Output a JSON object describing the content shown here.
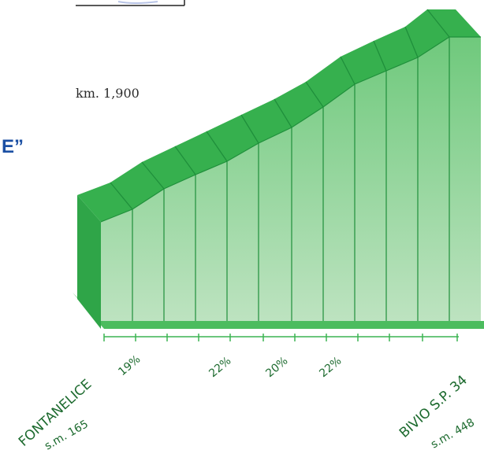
{
  "chart_data": {
    "type": "area",
    "subtype": "climb-profile",
    "title_fragment": "E”",
    "distance_label": "km. 1,900",
    "start": {
      "name": "FONTANELICE",
      "altitude_label": "s.m. 165"
    },
    "end": {
      "name": "BIVIO S.P. 34",
      "altitude_label": "s.m. 448"
    },
    "gradient_labels": [
      "19%",
      "22%",
      "20%",
      "22%"
    ],
    "segment_count": 11,
    "grid": true,
    "colors": {
      "face_top": "#6fc97c",
      "face_bottom": "#bde3c0",
      "ridge": "#36b04e",
      "divider": "#1f8f3b",
      "base": "#4cbc5e",
      "text": "#1c6a2e"
    }
  }
}
